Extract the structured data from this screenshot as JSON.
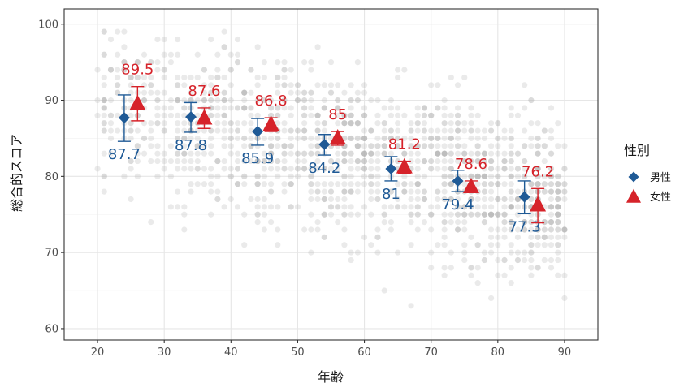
{
  "chart_data": {
    "type": "scatter",
    "title": "",
    "xlabel": "年齢",
    "ylabel": "総合的スコア",
    "xlim": [
      15,
      95
    ],
    "ylim": [
      58.5,
      102
    ],
    "xticks": [
      20,
      30,
      40,
      50,
      60,
      70,
      80,
      90
    ],
    "yticks": [
      60,
      70,
      80,
      90,
      100
    ],
    "grid": true,
    "legend": {
      "title": "性別",
      "placement": "right"
    },
    "series": [
      {
        "name": "男性",
        "color": "#1f5a96",
        "marker": "diamond",
        "x": [
          24,
          34,
          44,
          54,
          64,
          74,
          84
        ],
        "y": [
          87.7,
          87.8,
          85.9,
          84.2,
          81,
          79.4,
          77.3
        ],
        "labels": [
          "87.7",
          "87.8",
          "85.9",
          "84.2",
          "81",
          "79.4",
          "77.3"
        ],
        "err_low": [
          84.6,
          85.8,
          84.1,
          82.8,
          79.4,
          78.0,
          75.1
        ],
        "err_high": [
          90.7,
          89.7,
          87.6,
          85.5,
          82.6,
          80.8,
          79.4
        ]
      },
      {
        "name": "女性",
        "color": "#d6232a",
        "marker": "triangle",
        "x": [
          26,
          36,
          46,
          56,
          66,
          76,
          86
        ],
        "y": [
          89.5,
          87.6,
          86.8,
          85,
          81.2,
          78.6,
          76.2
        ],
        "labels": [
          "89.5",
          "87.6",
          "86.8",
          "85",
          "81.2",
          "78.6",
          "76.2"
        ],
        "err_low": [
          87.3,
          86.3,
          85.9,
          84.1,
          80.4,
          77.9,
          73.9
        ],
        "err_high": [
          91.8,
          89.0,
          87.7,
          85.9,
          82.0,
          79.4,
          78.4
        ]
      }
    ]
  }
}
